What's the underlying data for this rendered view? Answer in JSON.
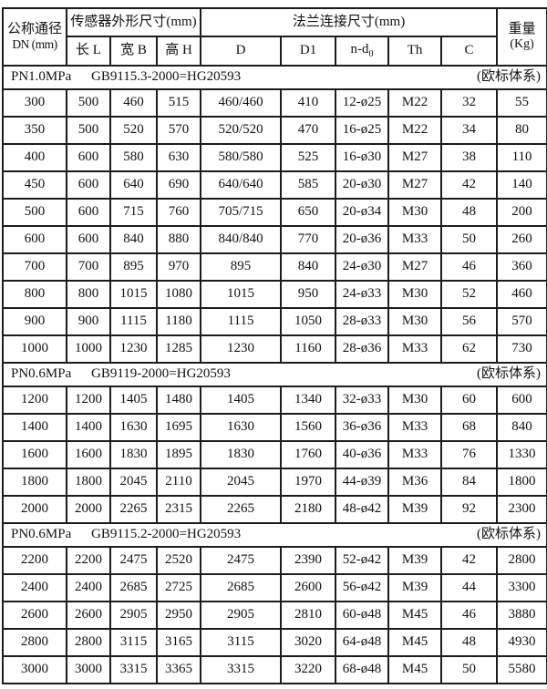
{
  "table": {
    "header": {
      "dn_line1": "公称通径",
      "dn_line2": "DN (mm)",
      "group_sensor": "传感器外形尺寸(mm)",
      "sensor_col_l": "长 L",
      "sensor_col_b": "宽 B",
      "sensor_col_h": "高 H",
      "group_flange": "法兰连接尺寸(mm)",
      "flange_col_d": "D",
      "flange_col_d1": "D1",
      "flange_col_ndo_main": "n-d",
      "flange_col_ndo_sub": "0",
      "flange_col_th": "Th",
      "flange_col_c": "C",
      "weight_line1": "重量",
      "weight_line2": "(Kg)"
    },
    "sections": [
      {
        "pressure": "PN1.0MPa",
        "standard": "GB9115.3-2000=HG20593",
        "note": "(欧标体系)",
        "rows": [
          [
            "300",
            "500",
            "460",
            "515",
            "460/460",
            "410",
            "12-ø25",
            "M22",
            "32",
            "55"
          ],
          [
            "350",
            "500",
            "520",
            "570",
            "520/520",
            "470",
            "16-ø25",
            "M22",
            "34",
            "80"
          ],
          [
            "400",
            "600",
            "580",
            "630",
            "580/580",
            "525",
            "16-ø30",
            "M27",
            "38",
            "110"
          ],
          [
            "450",
            "600",
            "640",
            "690",
            "640/640",
            "585",
            "20-ø30",
            "M27",
            "42",
            "140"
          ],
          [
            "500",
            "600",
            "715",
            "760",
            "705/715",
            "650",
            "20-ø34",
            "M30",
            "48",
            "200"
          ],
          [
            "600",
            "600",
            "840",
            "880",
            "840/840",
            "770",
            "20-ø36",
            "M33",
            "50",
            "260"
          ],
          [
            "700",
            "700",
            "895",
            "970",
            "895",
            "840",
            "24-ø30",
            "M27",
            "46",
            "360"
          ],
          [
            "800",
            "800",
            "1015",
            "1080",
            "1015",
            "950",
            "24-ø33",
            "M30",
            "52",
            "460"
          ],
          [
            "900",
            "900",
            "1115",
            "1180",
            "1115",
            "1050",
            "28-ø33",
            "M30",
            "56",
            "570"
          ],
          [
            "1000",
            "1000",
            "1230",
            "1285",
            "1230",
            "1160",
            "28-ø36",
            "M33",
            "62",
            "730"
          ]
        ]
      },
      {
        "pressure": "PN0.6MPa",
        "standard": "GB9119-2000=HG20593",
        "note": "(欧标体系)",
        "rows": [
          [
            "1200",
            "1200",
            "1405",
            "1480",
            "1405",
            "1340",
            "32-ø33",
            "M30",
            "60",
            "600"
          ],
          [
            "1400",
            "1400",
            "1630",
            "1695",
            "1630",
            "1560",
            "36-ø36",
            "M33",
            "68",
            "840"
          ],
          [
            "1600",
            "1600",
            "1830",
            "1895",
            "1830",
            "1760",
            "40-ø36",
            "M33",
            "76",
            "1330"
          ],
          [
            "1800",
            "1800",
            "2045",
            "2110",
            "2045",
            "1970",
            "44-ø39",
            "M36",
            "84",
            "1800"
          ],
          [
            "2000",
            "2000",
            "2265",
            "2315",
            "2265",
            "2180",
            "48-ø42",
            "M39",
            "92",
            "2300"
          ]
        ]
      },
      {
        "pressure": "PN0.6MPa",
        "standard": "GB9115.2-2000=HG20593",
        "note": "(欧标体系)",
        "rows": [
          [
            "2200",
            "2200",
            "2475",
            "2520",
            "2475",
            "2390",
            "52-ø42",
            "M39",
            "42",
            "2800"
          ],
          [
            "2400",
            "2400",
            "2685",
            "2725",
            "2685",
            "2600",
            "56-ø42",
            "M39",
            "44",
            "3300"
          ],
          [
            "2600",
            "2600",
            "2905",
            "2950",
            "2905",
            "2810",
            "60-ø48",
            "M45",
            "46",
            "3880"
          ],
          [
            "2800",
            "2800",
            "3115",
            "3165",
            "3115",
            "3020",
            "64-ø48",
            "M45",
            "48",
            "4930"
          ],
          [
            "3000",
            "3000",
            "3315",
            "3365",
            "3315",
            "3220",
            "68-ø48",
            "M45",
            "50",
            "5580"
          ]
        ]
      }
    ]
  }
}
